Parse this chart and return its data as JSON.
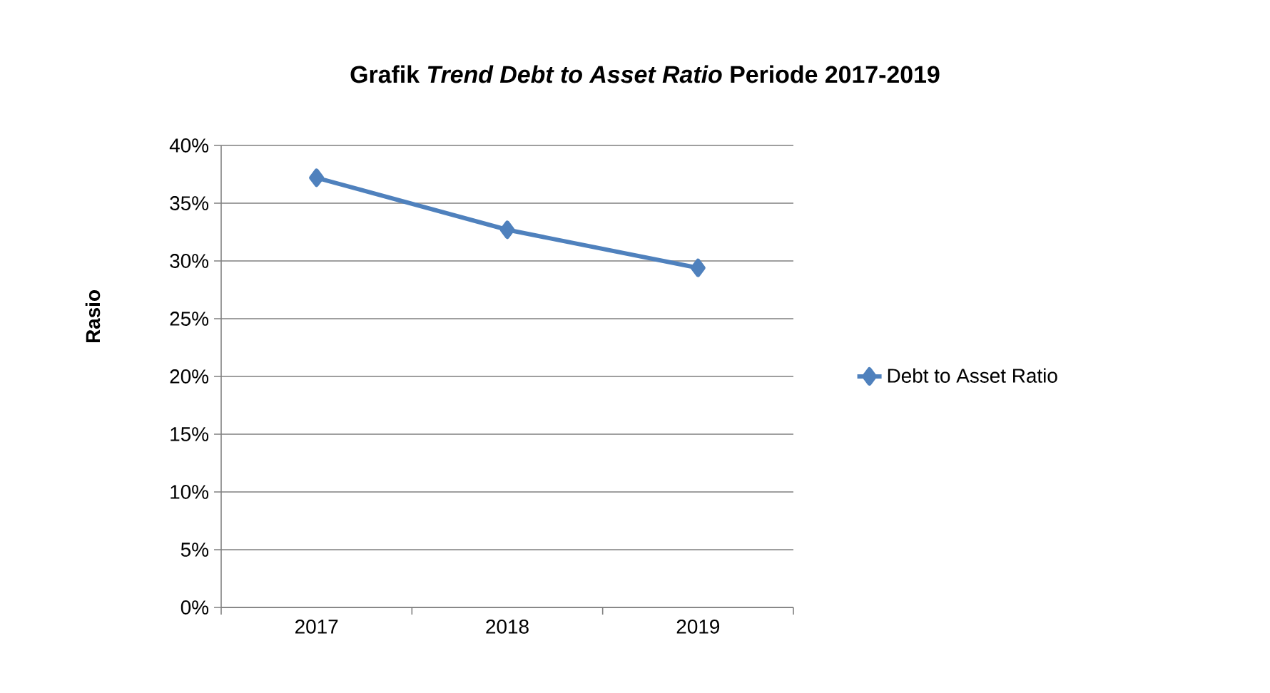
{
  "chart_data": {
    "type": "line",
    "title": "**Grafik *Trend Debt to Asset Ratio* Periode 2017-2019**",
    "ylabel": "Rasio",
    "categories": [
      "2017",
      "2018",
      "2019"
    ],
    "series": [
      {
        "name": "Debt to Asset Ratio",
        "color": "#4f81bd",
        "values": [
          37.2,
          32.7,
          29.4
        ]
      }
    ],
    "ylim": [
      0,
      40
    ],
    "yticks": [
      {
        "value": 0,
        "label": "0%"
      },
      {
        "value": 5,
        "label": "5%"
      },
      {
        "value": 10,
        "label": "10%"
      },
      {
        "value": 15,
        "label": "15%"
      },
      {
        "value": 20,
        "label": "20%"
      },
      {
        "value": 25,
        "label": "25%"
      },
      {
        "value": 30,
        "label": "30%"
      },
      {
        "value": 35,
        "label": "35%"
      },
      {
        "value": 40,
        "label": "40%"
      }
    ],
    "grid": "y",
    "legend": "right",
    "marker": "diamond",
    "line_style": "solid"
  }
}
